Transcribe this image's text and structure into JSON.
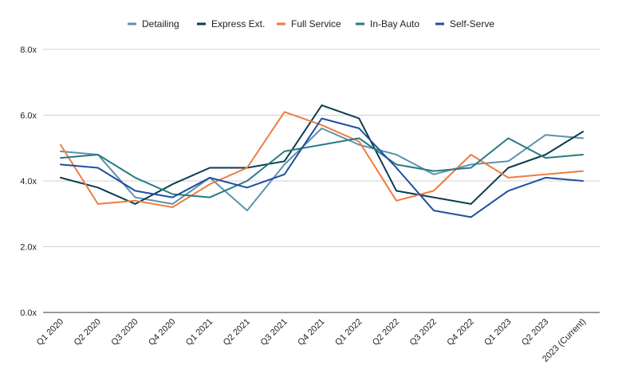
{
  "chart_data": {
    "type": "line",
    "title": "",
    "xlabel": "",
    "ylabel": "",
    "ylim": [
      0,
      8
    ],
    "y_ticks": [
      {
        "value": 0,
        "label": "0.0x"
      },
      {
        "value": 2,
        "label": "2.0x"
      },
      {
        "value": 4,
        "label": "4.0x"
      },
      {
        "value": 6,
        "label": "6.0x"
      },
      {
        "value": 8,
        "label": "8.0x"
      }
    ],
    "grid": true,
    "legend_position": "top-center",
    "categories": [
      "Q1 2020",
      "Q2 2020",
      "Q3 2020",
      "Q4 2020",
      "Q1 2021",
      "Q2 2021",
      "Q3 2021",
      "Q4 2021",
      "Q1 2022",
      "Q2 2022",
      "Q3 2022",
      "Q4 2022",
      "Q1 2023",
      "Q2 2023",
      "2023 (Current)"
    ],
    "series": [
      {
        "name": "Detailing",
        "color": "#5b93ad",
        "values": [
          4.9,
          4.8,
          3.5,
          3.3,
          4.1,
          3.1,
          4.5,
          5.6,
          5.1,
          4.8,
          4.2,
          4.5,
          4.6,
          5.4,
          5.3
        ]
      },
      {
        "name": "Express Ext.",
        "color": "#0b3d4f",
        "values": [
          4.1,
          3.8,
          3.3,
          3.9,
          4.4,
          4.4,
          4.6,
          6.3,
          5.9,
          3.7,
          3.5,
          3.3,
          4.4,
          4.8,
          5.5
        ]
      },
      {
        "name": "Full Service",
        "color": "#f07b3f",
        "values": [
          5.1,
          3.3,
          3.4,
          3.2,
          3.9,
          4.4,
          6.1,
          5.7,
          5.2,
          3.4,
          3.7,
          4.8,
          4.1,
          4.2,
          4.3
        ]
      },
      {
        "name": "In-Bay Auto",
        "color": "#277a82",
        "values": [
          4.7,
          4.8,
          4.1,
          3.6,
          3.5,
          4.0,
          4.9,
          5.1,
          5.3,
          4.5,
          4.3,
          4.4,
          5.3,
          4.7,
          4.8
        ]
      },
      {
        "name": "Self-Serve",
        "color": "#1f4ea1",
        "values": [
          4.5,
          4.4,
          3.7,
          3.5,
          4.1,
          3.8,
          4.2,
          5.9,
          5.6,
          4.4,
          3.1,
          2.9,
          3.7,
          4.1,
          4.0
        ]
      }
    ]
  }
}
